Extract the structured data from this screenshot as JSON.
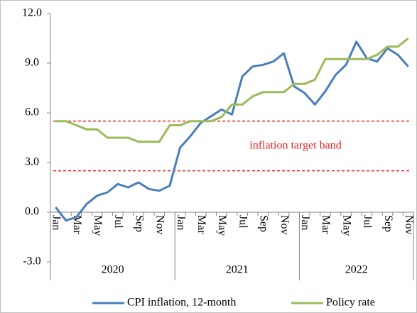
{
  "chart_data": {
    "type": "line",
    "categories": [
      "Jan",
      null,
      "Mar",
      null,
      "May",
      null,
      "Jul",
      null,
      "Sep",
      null,
      "Nov",
      null,
      "Jan",
      null,
      "Mar",
      null,
      "May",
      null,
      "Jul",
      null,
      "Sep",
      null,
      "Nov",
      null,
      "Jan",
      null,
      "Mar",
      null,
      "May",
      null,
      "Jul",
      null,
      "Sep",
      null,
      "Nov"
    ],
    "category_groups": [
      "2020",
      "2021",
      "2022"
    ],
    "series": [
      {
        "name": "CPI inflation, 12-month",
        "color": "#4a7ebb",
        "values": [
          0.3,
          -0.5,
          -0.3,
          0.5,
          1.0,
          1.2,
          1.7,
          1.5,
          1.8,
          1.4,
          1.3,
          1.6,
          3.9,
          4.6,
          5.4,
          5.8,
          6.2,
          5.9,
          8.2,
          8.8,
          8.9,
          9.1,
          9.6,
          7.6,
          7.2,
          6.5,
          7.3,
          8.3,
          8.9,
          10.3,
          9.3,
          9.1,
          9.9,
          9.5,
          8.8
        ]
      },
      {
        "name": "Policy rate",
        "color": "#9bbb59",
        "values": [
          5.5,
          5.5,
          5.25,
          5.0,
          5.0,
          4.5,
          4.5,
          4.5,
          4.25,
          4.25,
          4.25,
          5.25,
          5.25,
          5.5,
          5.5,
          5.5,
          5.75,
          6.5,
          6.5,
          7.0,
          7.25,
          7.25,
          7.25,
          7.75,
          7.75,
          8.0,
          9.25,
          9.25,
          9.25,
          9.25,
          9.25,
          9.5,
          10.0,
          10.0,
          10.5
        ]
      }
    ],
    "ylim": [
      -3,
      12
    ],
    "yticks": [
      {
        "value": -3,
        "label": "-3.0"
      },
      {
        "value": 0,
        "label": "0.0"
      },
      {
        "value": 3,
        "label": "3.0"
      },
      {
        "value": 6,
        "label": "6.0"
      },
      {
        "value": 9,
        "label": "9.0"
      },
      {
        "value": 12,
        "label": "12.0"
      }
    ],
    "reference_lines": [
      {
        "value": 5.5,
        "color": "#e8231f"
      },
      {
        "value": 2.5,
        "color": "#e8231f"
      }
    ],
    "annotations": [
      {
        "text": "inflation target band",
        "color": "#e8231f"
      }
    ],
    "legend": "bottom"
  }
}
